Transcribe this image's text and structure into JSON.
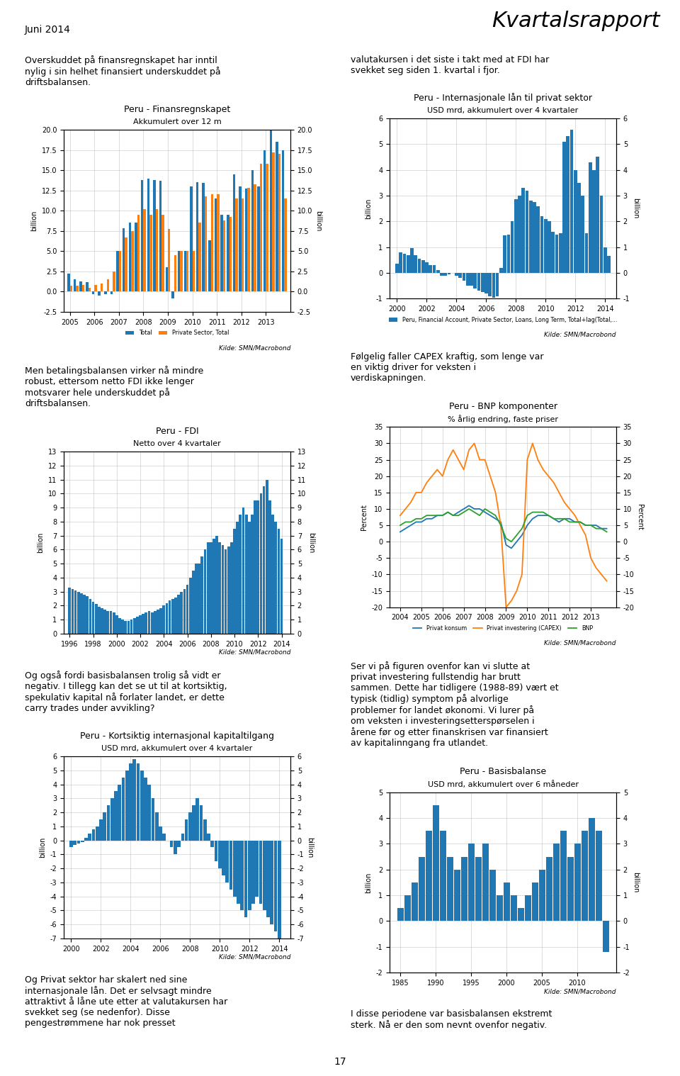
{
  "title": "Kvartalsrapport",
  "subtitle": "Juni 2014",
  "annotations": [
    "Overskuddet på finansregnskapet har inntil\nnylig i sin helhet finansiert underskuddet på\ndriftsbalansen.",
    "valutakursen i det siste i takt med at FDI har\nsvekket seg siden 1. kvartal i fjor.",
    "Men betalingsbalansen virker nå mindre\nrobust, ettersom netto FDI ikke lenger\nmotsvarer hele underskuddet på\ndriftsbalansen.",
    "Følgelig faller CAPEX kraftig, som lenge var\nen viktig driver for veksten i\nverdiskapningen.",
    "Og også fordi basisbalansen trolig så vidt er\nnegativ. I tillegg kan det se ut til at kortsiktig,\nspekulativ kapital nå forlater landet, er dette\ncarry trades under avvikling?",
    "Ser vi på figuren ovenfor kan vi slutte at\nprivat investering fullstendig har brutt\nsammen. Dette har tidligere (1988-89) vært et\ntypisk (tidlig) symptom på alvorlige\nproblemer for landet økonomi. Vi lurer på\nom veksten i investeringsetterspørselen i\nårene før og etter finanskrisen var finansiert\nav kapitalinngang fra utlandet.",
    "Og Privat sektor har skalert ned sine\ninternasjonale lån. Det er selvsagt mindre\nattraktivt å låne ute etter at valutakursen har\nsvekket seg (se nedenfor). Disse\npengestrømmene har nok presset",
    "I disse periodene var basisbalansen ekstremt\nsterk. Nå er den som nevnt ovenfor negativ.",
    "17"
  ],
  "chart_data": [
    {
      "type": "bar",
      "title": "Peru - Finansregnskapet",
      "subtitle": "Akkumulert over 12 m",
      "annotations": [
        "Kilde: SMN/Macrobond"
      ],
      "ylabel": "billion",
      "y2label": "billion",
      "grid": true,
      "legend": "below",
      "categories": [
        "2005",
        null,
        null,
        null,
        "2006",
        null,
        null,
        null,
        "2007",
        null,
        null,
        null,
        "2008",
        null,
        null,
        null,
        "2009",
        null,
        null,
        null,
        "2010",
        null,
        null,
        null,
        "2011",
        null,
        null,
        null,
        "2012",
        null,
        null,
        null,
        "2013",
        null,
        null,
        null
      ],
      "series": [
        {
          "name": "Total",
          "values": [
            2.2,
            1.5,
            1.3,
            1.2,
            -0.3,
            -0.5,
            -0.3,
            -0.3,
            5.0,
            7.8,
            8.5,
            8.5,
            13.8,
            14.0,
            13.8,
            13.7,
            3.0,
            -0.8,
            5.0,
            5.0,
            13.0,
            13.5,
            13.4,
            6.3,
            11.5,
            9.5,
            9.5,
            14.5,
            13.0,
            12.7,
            15.0,
            13.0,
            17.5,
            20.0,
            18.5,
            17.5
          ]
        },
        {
          "name": "Private Sector, Total",
          "values": [
            0.7,
            0.7,
            0.8,
            0.5,
            0.8,
            1.0,
            1.5,
            2.5,
            5.0,
            6.7,
            7.5,
            9.5,
            10.2,
            9.5,
            10.2,
            9.5,
            7.7,
            4.5,
            5.0,
            5.0,
            5.0,
            8.5,
            11.8,
            12.0,
            12.0,
            8.8,
            9.2,
            11.5,
            11.5,
            12.8,
            13.3,
            15.8,
            15.8,
            17.2,
            17.0,
            11.5
          ]
        }
      ],
      "ylim": [
        -2.5,
        20.0
      ],
      "yticks": [
        -2.5,
        {
          "value": 0,
          "label": "0.0"
        },
        2.5,
        {
          "value": 5,
          "label": "5.0"
        },
        7.5,
        {
          "value": 10,
          "label": "10.0"
        },
        12.5,
        {
          "value": 15,
          "label": "15.0"
        },
        17.5,
        {
          "value": 20,
          "label": "20.0"
        }
      ],
      "y2lim": [
        -2.5,
        20.0
      ],
      "y2ticks": [
        -2.5,
        {
          "value": 0,
          "label": "0.0"
        },
        2.5,
        {
          "value": 5,
          "label": "5.0"
        },
        7.5,
        {
          "value": 10,
          "label": "10.0"
        },
        12.5,
        {
          "value": 15,
          "label": "15.0"
        },
        17.5,
        {
          "value": 20,
          "label": "20.0"
        }
      ]
    },
    {
      "type": "bar",
      "title": "Peru - Internasjonale lån til privat sektor",
      "subtitle": "USD mrd, akkumulert over 4 kvartaler",
      "annotations": [
        "Kilde: SMN/Macrobond"
      ],
      "ylabel": "billion",
      "y2label": "billion",
      "grid": true,
      "legend": "below",
      "x": [
        2000.0,
        2000.25,
        2000.5,
        2000.75,
        2001.0,
        2001.25,
        2001.5,
        2001.75,
        2002.0,
        2002.25,
        2002.5,
        2002.75,
        2003.0,
        2003.25,
        2003.5,
        2003.75,
        2004.0,
        2004.25,
        2004.5,
        2004.75,
        2005.0,
        2005.25,
        2005.5,
        2005.75,
        2006.0,
        2006.25,
        2006.5,
        2006.75,
        2007.0,
        2007.25,
        2007.5,
        2007.75,
        2008.0,
        2008.25,
        2008.5,
        2008.75,
        2009.0,
        2009.25,
        2009.5,
        2009.75,
        2010.0,
        2010.25,
        2010.5,
        2010.75,
        2011.0,
        2011.25,
        2011.5,
        2011.75,
        2012.0,
        2012.25,
        2012.5,
        2012.75,
        2013.0,
        2013.25,
        2013.5,
        2013.75,
        2014.0,
        2014.25
      ],
      "series": [
        {
          "name": "Peru, Financial Account, Private Sector, Loans, Long Term, Total+lag(Total,...",
          "values": [
            0.35,
            0.8,
            0.75,
            0.7,
            0.95,
            0.7,
            0.55,
            0.5,
            0.4,
            0.3,
            0.3,
            0.1,
            -0.1,
            -0.1,
            -0.05,
            0.0,
            -0.1,
            -0.2,
            -0.3,
            -0.5,
            -0.5,
            -0.6,
            -0.7,
            -0.75,
            -0.8,
            -0.9,
            -0.95,
            -0.92,
            0.2,
            1.45,
            1.48,
            2.0,
            2.85,
            3.0,
            3.3,
            3.2,
            2.8,
            2.75,
            2.6,
            2.2,
            2.1,
            2.0,
            1.6,
            1.5,
            1.55,
            5.1,
            5.3,
            5.55,
            4.0,
            3.5,
            3.0,
            1.55,
            4.3,
            4.0,
            4.5,
            3.0,
            1.0,
            0.65
          ]
        }
      ],
      "xlim": [
        1999.5,
        2014.75
      ],
      "xticks": [
        2000,
        2002,
        2004,
        2006,
        2008,
        2010,
        2012,
        2014
      ],
      "ylim": [
        -1,
        6
      ],
      "yticks": [
        -1,
        0,
        1,
        2,
        3,
        4,
        5,
        6
      ],
      "y2lim": [
        -1,
        6
      ],
      "y2ticks": [
        -1,
        0,
        1,
        2,
        3,
        4,
        5,
        6
      ]
    },
    {
      "type": "bar",
      "title": "Peru - FDI",
      "subtitle": "Netto over 4 kvartaler",
      "annotations": [
        "Kilde: SMN/Macrobond"
      ],
      "ylabel": "billion",
      "y2label": "billion",
      "grid": true,
      "x": [
        1996.0,
        1996.25,
        1996.5,
        1996.75,
        1997.0,
        1997.25,
        1997.5,
        1997.75,
        1998.0,
        1998.25,
        1998.5,
        1998.75,
        1999.0,
        1999.25,
        1999.5,
        1999.75,
        2000.0,
        2000.25,
        2000.5,
        2000.75,
        2001.0,
        2001.25,
        2001.5,
        2001.75,
        2002.0,
        2002.25,
        2002.5,
        2002.75,
        2003.0,
        2003.25,
        2003.5,
        2003.75,
        2004.0,
        2004.25,
        2004.5,
        2004.75,
        2005.0,
        2005.25,
        2005.5,
        2005.75,
        2006.0,
        2006.25,
        2006.5,
        2006.75,
        2007.0,
        2007.25,
        2007.5,
        2007.75,
        2008.0,
        2008.25,
        2008.5,
        2008.75,
        2009.0,
        2009.25,
        2009.5,
        2009.75,
        2010.0,
        2010.25,
        2010.5,
        2010.75,
        2011.0,
        2011.25,
        2011.5,
        2011.75,
        2012.0,
        2012.25,
        2012.5,
        2012.75,
        2013.0,
        2013.25,
        2013.5,
        2013.75,
        2014.0
      ],
      "values": [
        3.3,
        3.2,
        3.1,
        3.0,
        2.9,
        2.8,
        2.7,
        2.5,
        2.3,
        2.1,
        1.9,
        1.8,
        1.7,
        1.6,
        1.6,
        1.5,
        1.3,
        1.1,
        1.0,
        0.9,
        0.9,
        1.0,
        1.1,
        1.2,
        1.3,
        1.4,
        1.5,
        1.6,
        1.5,
        1.6,
        1.7,
        1.8,
        2.0,
        2.2,
        2.4,
        2.5,
        2.6,
        2.8,
        3.0,
        3.2,
        3.5,
        4.0,
        4.5,
        5.0,
        5.0,
        5.5,
        6.0,
        6.5,
        6.5,
        6.8,
        7.0,
        6.5,
        6.3,
        6.0,
        6.2,
        6.5,
        7.5,
        8.0,
        8.5,
        9.0,
        8.5,
        8.0,
        8.5,
        9.5,
        9.5,
        10.0,
        10.5,
        11.0,
        9.5,
        8.5,
        8.0,
        7.5,
        6.8
      ],
      "xlim": [
        1995.5,
        2014.75
      ],
      "xticks": [
        1996,
        1998,
        2000,
        2002,
        2004,
        2006,
        2008,
        2010,
        2012,
        2014
      ],
      "ylim": [
        0,
        13
      ],
      "yticks": [
        0,
        1,
        2,
        3,
        4,
        5,
        6,
        7,
        8,
        9,
        10,
        11,
        12,
        13
      ],
      "y2lim": [
        0,
        13
      ],
      "y2ticks": [
        0,
        1,
        2,
        3,
        4,
        5,
        6,
        7,
        8,
        9,
        10,
        11,
        12,
        13
      ]
    },
    {
      "type": "line",
      "title": "Peru - BNP komponenter",
      "subtitle": "% årlig endring, faste priser",
      "annotations": [
        "Kilde: SMN/Macrobond"
      ],
      "ylabel": "Percent",
      "y2label": "Percent",
      "grid": true,
      "legend": "below",
      "x": [
        2004,
        2004.25,
        2004.5,
        2004.75,
        2005,
        2005.25,
        2005.5,
        2005.75,
        2006,
        2006.25,
        2006.5,
        2006.75,
        2007,
        2007.25,
        2007.5,
        2007.75,
        2008,
        2008.25,
        2008.5,
        2008.75,
        2009,
        2009.25,
        2009.5,
        2009.75,
        2010,
        2010.25,
        2010.5,
        2010.75,
        2011,
        2011.25,
        2011.5,
        2011.75,
        2012,
        2012.25,
        2012.5,
        2012.75,
        2013,
        2013.25,
        2013.5,
        2013.75
      ],
      "series": [
        {
          "name": "Privat konsum",
          "values": [
            3,
            4,
            5,
            6,
            6,
            7,
            7,
            8,
            8,
            9,
            8,
            9,
            10,
            11,
            10,
            10,
            9,
            8,
            7,
            6,
            -1,
            -2,
            0,
            2,
            5,
            7,
            8,
            8,
            8,
            7,
            6,
            7,
            7,
            6,
            6,
            5,
            5,
            5,
            4,
            4
          ]
        },
        {
          "name": "Privat investering (CAPEX)",
          "values": [
            8,
            10,
            12,
            15,
            15,
            18,
            20,
            22,
            20,
            25,
            28,
            25,
            22,
            28,
            30,
            25,
            25,
            20,
            15,
            5,
            -20,
            -18,
            -15,
            -10,
            25,
            30,
            25,
            22,
            20,
            18,
            15,
            12,
            10,
            8,
            5,
            2,
            -5,
            -8,
            -10,
            -12
          ]
        },
        {
          "name": "BNP",
          "values": [
            5,
            6,
            6,
            7,
            7,
            8,
            8,
            8,
            8,
            9,
            8,
            8,
            9,
            10,
            9,
            8,
            10,
            9,
            8,
            5,
            1,
            0,
            2,
            4,
            8,
            9,
            9,
            9,
            8,
            7,
            7,
            7,
            6,
            6,
            6,
            5,
            5,
            4,
            4,
            3
          ]
        }
      ],
      "xlim": [
        2003.5,
        2014.2
      ],
      "xticks": [
        2004,
        2005,
        2006,
        2007,
        2008,
        2009,
        2010,
        2011,
        2012,
        2013
      ],
      "ylim": [
        -20,
        35
      ],
      "yticks": [
        -20,
        -15,
        -10,
        -5,
        0,
        5,
        10,
        15,
        20,
        25,
        30,
        35
      ],
      "y2lim": [
        -20,
        35
      ],
      "y2ticks": [
        -20,
        -15,
        -10,
        -5,
        0,
        5,
        10,
        15,
        20,
        25,
        30,
        35
      ]
    },
    {
      "type": "bar",
      "title": "Peru - Kortsiktig internasjonal kapitaltilgang",
      "subtitle": "USD mrd, akkumulert over 4 kvartaler",
      "annotations": [
        "Kilde: SMN/Macrobond"
      ],
      "ylabel": "billion",
      "y2label": "billion",
      "grid": true,
      "x": [
        2000.0,
        2000.25,
        2000.5,
        2000.75,
        2001.0,
        2001.25,
        2001.5,
        2001.75,
        2002.0,
        2002.25,
        2002.5,
        2002.75,
        2003.0,
        2003.25,
        2003.5,
        2003.75,
        2004.0,
        2004.25,
        2004.5,
        2004.75,
        2005.0,
        2005.25,
        2005.5,
        2005.75,
        2006.0,
        2006.25,
        2006.5,
        2006.75,
        2007.0,
        2007.25,
        2007.5,
        2007.75,
        2008.0,
        2008.25,
        2008.5,
        2008.75,
        2009.0,
        2009.25,
        2009.5,
        2009.75,
        2010.0,
        2010.25,
        2010.5,
        2010.75,
        2011.0,
        2011.25,
        2011.5,
        2011.75,
        2012.0,
        2012.25,
        2012.5,
        2012.75,
        2013.0,
        2013.25,
        2013.5,
        2013.75,
        2014.0
      ],
      "values": [
        -0.5,
        -0.3,
        -0.2,
        -0.1,
        0.2,
        0.5,
        0.8,
        1.0,
        1.5,
        2.0,
        2.5,
        3.0,
        3.5,
        4.0,
        4.5,
        5.0,
        5.5,
        5.8,
        5.5,
        5.0,
        4.5,
        4.0,
        3.0,
        2.0,
        1.0,
        0.5,
        0.0,
        -0.5,
        -1.0,
        -0.5,
        0.5,
        1.5,
        2.0,
        2.5,
        3.0,
        2.5,
        1.5,
        0.5,
        -0.5,
        -1.5,
        -2.0,
        -2.5,
        -3.0,
        -3.5,
        -4.0,
        -4.5,
        -5.0,
        -5.5,
        -5.0,
        -4.5,
        -4.0,
        -4.5,
        -5.0,
        -5.5,
        -6.0,
        -6.5,
        -7.0
      ],
      "xlim": [
        1999.5,
        2014.75
      ],
      "xticks": [
        2000,
        2002,
        2004,
        2006,
        2008,
        2010,
        2012,
        2014
      ],
      "ylim": [
        -7,
        6
      ],
      "yticks": [
        -7,
        -6,
        -5,
        -4,
        -3,
        -2,
        -1,
        0,
        1,
        2,
        3,
        4,
        5,
        6
      ],
      "y2lim": [
        -7,
        6
      ],
      "y2ticks": [
        -7,
        -6,
        -5,
        -4,
        -3,
        -2,
        -1,
        0,
        1,
        2,
        3,
        4,
        5,
        6
      ]
    },
    {
      "type": "bar",
      "title": "Peru - Basisbalanse",
      "subtitle": "USD mrd, akkumulert over 6 måneder",
      "annotations": [
        "Kilde: SMN/Macrobond"
      ],
      "ylabel": "billion",
      "y2label": "billion",
      "grid": true,
      "x": [
        1985,
        1986,
        1987,
        1988,
        1989,
        1990,
        1991,
        1992,
        1993,
        1994,
        1995,
        1996,
        1997,
        1998,
        1999,
        2000,
        2001,
        2002,
        2003,
        2004,
        2005,
        2006,
        2007,
        2008,
        2009,
        2010,
        2011,
        2012,
        2013,
        2014
      ],
      "values": [
        0.5,
        1.0,
        1.5,
        2.5,
        3.5,
        4.5,
        3.5,
        2.5,
        2.0,
        2.5,
        3.0,
        2.5,
        3.0,
        2.0,
        1.0,
        1.5,
        1.0,
        0.5,
        1.0,
        1.5,
        2.0,
        2.5,
        3.0,
        3.5,
        2.5,
        3.0,
        3.5,
        4.0,
        3.5,
        -1.2
      ],
      "xlim": [
        1983.5,
        2015.5
      ],
      "xticks": [
        1985,
        1990,
        1995,
        2000,
        2005,
        2010
      ],
      "ylim": [
        -2,
        5
      ],
      "yticks": [
        -2,
        -1,
        0,
        1,
        2,
        3,
        4,
        5
      ],
      "y2lim": [
        -2,
        5
      ],
      "y2ticks": [
        -2,
        -1,
        0,
        1,
        2,
        3,
        4,
        5
      ]
    }
  ]
}
